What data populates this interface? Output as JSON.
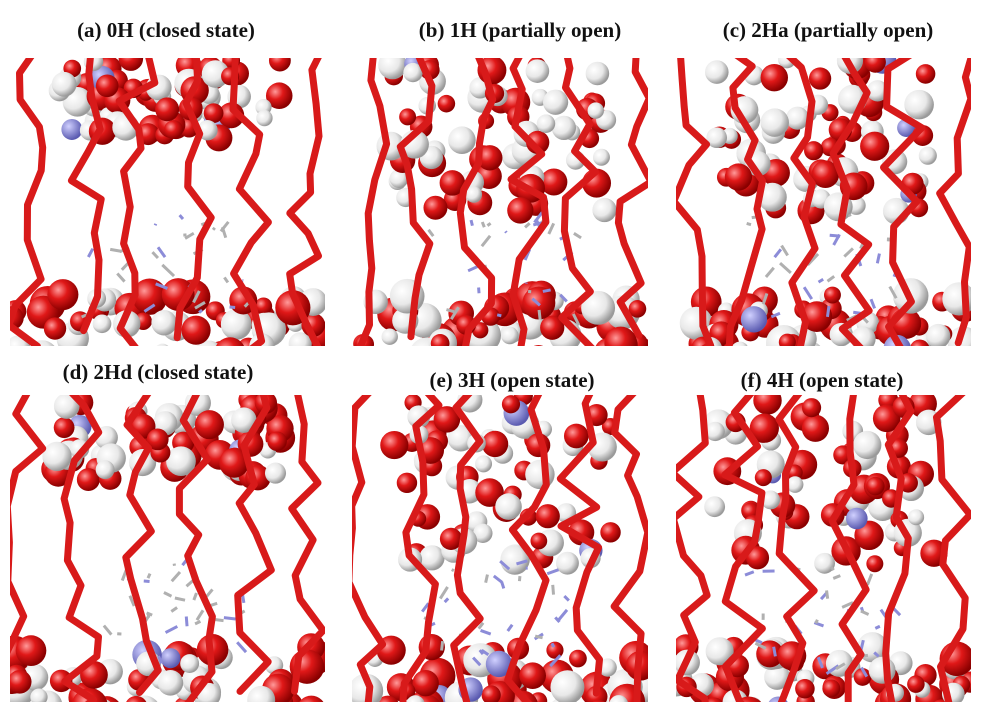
{
  "panels": [
    {
      "label": "(a) 0H (closed state)"
    },
    {
      "label": "(b) 1H (partially open)"
    },
    {
      "label": "(c) 2Ha (partially open)"
    },
    {
      "label": "(d) 2Hd (closed state)"
    },
    {
      "label": "(e) 3H (open state)"
    },
    {
      "label": "(f) 4H (open state)"
    }
  ]
}
